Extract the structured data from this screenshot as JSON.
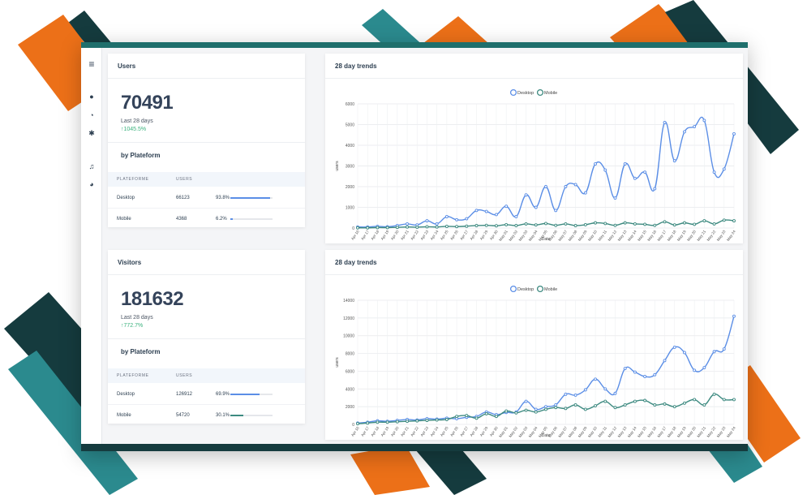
{
  "sidebar": {
    "items": [
      {
        "name": "menu-icon",
        "glyph": "≡"
      },
      {
        "name": "dashboard-icon",
        "glyph": "●"
      },
      {
        "name": "pie-chart-icon",
        "glyph": "◔"
      },
      {
        "name": "gear-icon",
        "glyph": "✱"
      },
      {
        "name": "music-icon",
        "glyph": "♫"
      },
      {
        "name": "palette-icon",
        "glyph": "◕"
      }
    ]
  },
  "users_card": {
    "title": "Users",
    "value": "70491",
    "subtitle": "Last 28 days",
    "growth": "1045.5%",
    "by_platform_title": "by Plateform",
    "table_headers": [
      "PLATEFORME",
      "USERS"
    ],
    "rows": [
      {
        "platform": "Desktop",
        "users": "66123",
        "share": "93.8%",
        "fraction": 0.938
      },
      {
        "platform": "Mobile",
        "users": "4368",
        "share": "6.2%",
        "fraction": 0.062
      }
    ]
  },
  "visitors_card": {
    "title": "Visitors",
    "value": "181632",
    "subtitle": "Last 28 days",
    "growth": "772.7%",
    "by_platform_title": "by Plateform",
    "table_headers": [
      "PLATEFORME",
      "USERS"
    ],
    "rows": [
      {
        "platform": "Desktop",
        "users": "126912",
        "share": "69.9%",
        "fraction": 0.699
      },
      {
        "platform": "Mobile",
        "users": "54720",
        "share": "30.1%",
        "fraction": 0.301
      }
    ]
  },
  "colors": {
    "desktop": "#5b8ee6",
    "mobile": "#3d8a80",
    "growth": "#3bb27e",
    "teal": "#2b8a8e",
    "dark_teal": "#153b3e",
    "orange": "#ec7018"
  },
  "chart_data": [
    {
      "type": "line",
      "title": "28 day trends",
      "xlabel": "Date",
      "ylabel": "users",
      "ylim": [
        0,
        6000
      ],
      "yticks": [
        0,
        1000,
        2000,
        3000,
        4000,
        5000,
        6000
      ],
      "legend": "top-center",
      "grid": true,
      "x": [
        "Apr 16",
        "Apr 17",
        "Apr 18",
        "Apr 19",
        "Apr 20",
        "Apr 21",
        "Apr 22",
        "Apr 23",
        "Apr 24",
        "Apr 25",
        "Apr 26",
        "Apr 27",
        "Apr 28",
        "Apr 29",
        "Apr 30",
        "May 01",
        "May 02",
        "May 03",
        "May 04",
        "May 05",
        "May 06",
        "May 07",
        "May 08",
        "May 09",
        "May 10",
        "May 11",
        "May 12",
        "May 13",
        "May 14",
        "May 15",
        "May 16",
        "May 17",
        "May 18",
        "May 19",
        "May 20",
        "May 21",
        "May 22",
        "May 23",
        "May 24"
      ],
      "series": [
        {
          "name": "Desktop",
          "values": [
            50,
            50,
            80,
            60,
            120,
            200,
            150,
            350,
            200,
            550,
            400,
            450,
            850,
            800,
            650,
            1050,
            550,
            1600,
            1000,
            2000,
            850,
            2000,
            2100,
            1700,
            3100,
            2800,
            1450,
            3100,
            2400,
            2700,
            1900,
            5100,
            3250,
            4650,
            4900,
            5200,
            2700,
            2850,
            4550
          ]
        },
        {
          "name": "Mobile",
          "values": [
            10,
            10,
            20,
            20,
            30,
            50,
            40,
            60,
            50,
            80,
            70,
            90,
            120,
            130,
            110,
            160,
            120,
            200,
            150,
            220,
            130,
            200,
            120,
            160,
            250,
            220,
            130,
            250,
            200,
            180,
            130,
            300,
            150,
            250,
            180,
            350,
            200,
            380,
            350
          ]
        }
      ]
    },
    {
      "type": "line",
      "title": "28 day trends",
      "xlabel": "Date",
      "ylabel": "users",
      "ylim": [
        0,
        14000
      ],
      "yticks": [
        0,
        2000,
        4000,
        6000,
        8000,
        10000,
        12000,
        14000
      ],
      "legend": "top-center",
      "grid": true,
      "x": [
        "Apr 16",
        "Apr 17",
        "Apr 18",
        "Apr 19",
        "Apr 20",
        "Apr 21",
        "Apr 22",
        "Apr 23",
        "Apr 24",
        "Apr 25",
        "Apr 26",
        "Apr 27",
        "Apr 28",
        "Apr 29",
        "Apr 30",
        "May 01",
        "May 02",
        "May 03",
        "May 04",
        "May 05",
        "May 06",
        "May 07",
        "May 08",
        "May 09",
        "May 10",
        "May 11",
        "May 12",
        "May 13",
        "May 14",
        "May 15",
        "May 16",
        "May 17",
        "May 18",
        "May 19",
        "May 20",
        "May 21",
        "May 22",
        "May 23",
        "May 24"
      ],
      "series": [
        {
          "name": "Desktop",
          "values": [
            150,
            250,
            400,
            350,
            450,
            550,
            500,
            650,
            600,
            700,
            650,
            800,
            900,
            1400,
            1100,
            1350,
            1400,
            2600,
            1700,
            2000,
            2200,
            3400,
            3300,
            3900,
            5100,
            4000,
            3500,
            6300,
            5900,
            5400,
            5600,
            7200,
            8700,
            8100,
            6100,
            6400,
            8200,
            8500,
            12200
          ]
        },
        {
          "name": "Mobile",
          "values": [
            80,
            150,
            250,
            250,
            300,
            350,
            400,
            450,
            500,
            550,
            900,
            1000,
            700,
            1200,
            900,
            1500,
            1300,
            1600,
            1400,
            1700,
            1900,
            1800,
            2200,
            1700,
            2100,
            2600,
            1900,
            2200,
            2600,
            2700,
            2200,
            2300,
            2000,
            2400,
            2800,
            2200,
            3400,
            2800,
            2800
          ]
        }
      ]
    }
  ]
}
